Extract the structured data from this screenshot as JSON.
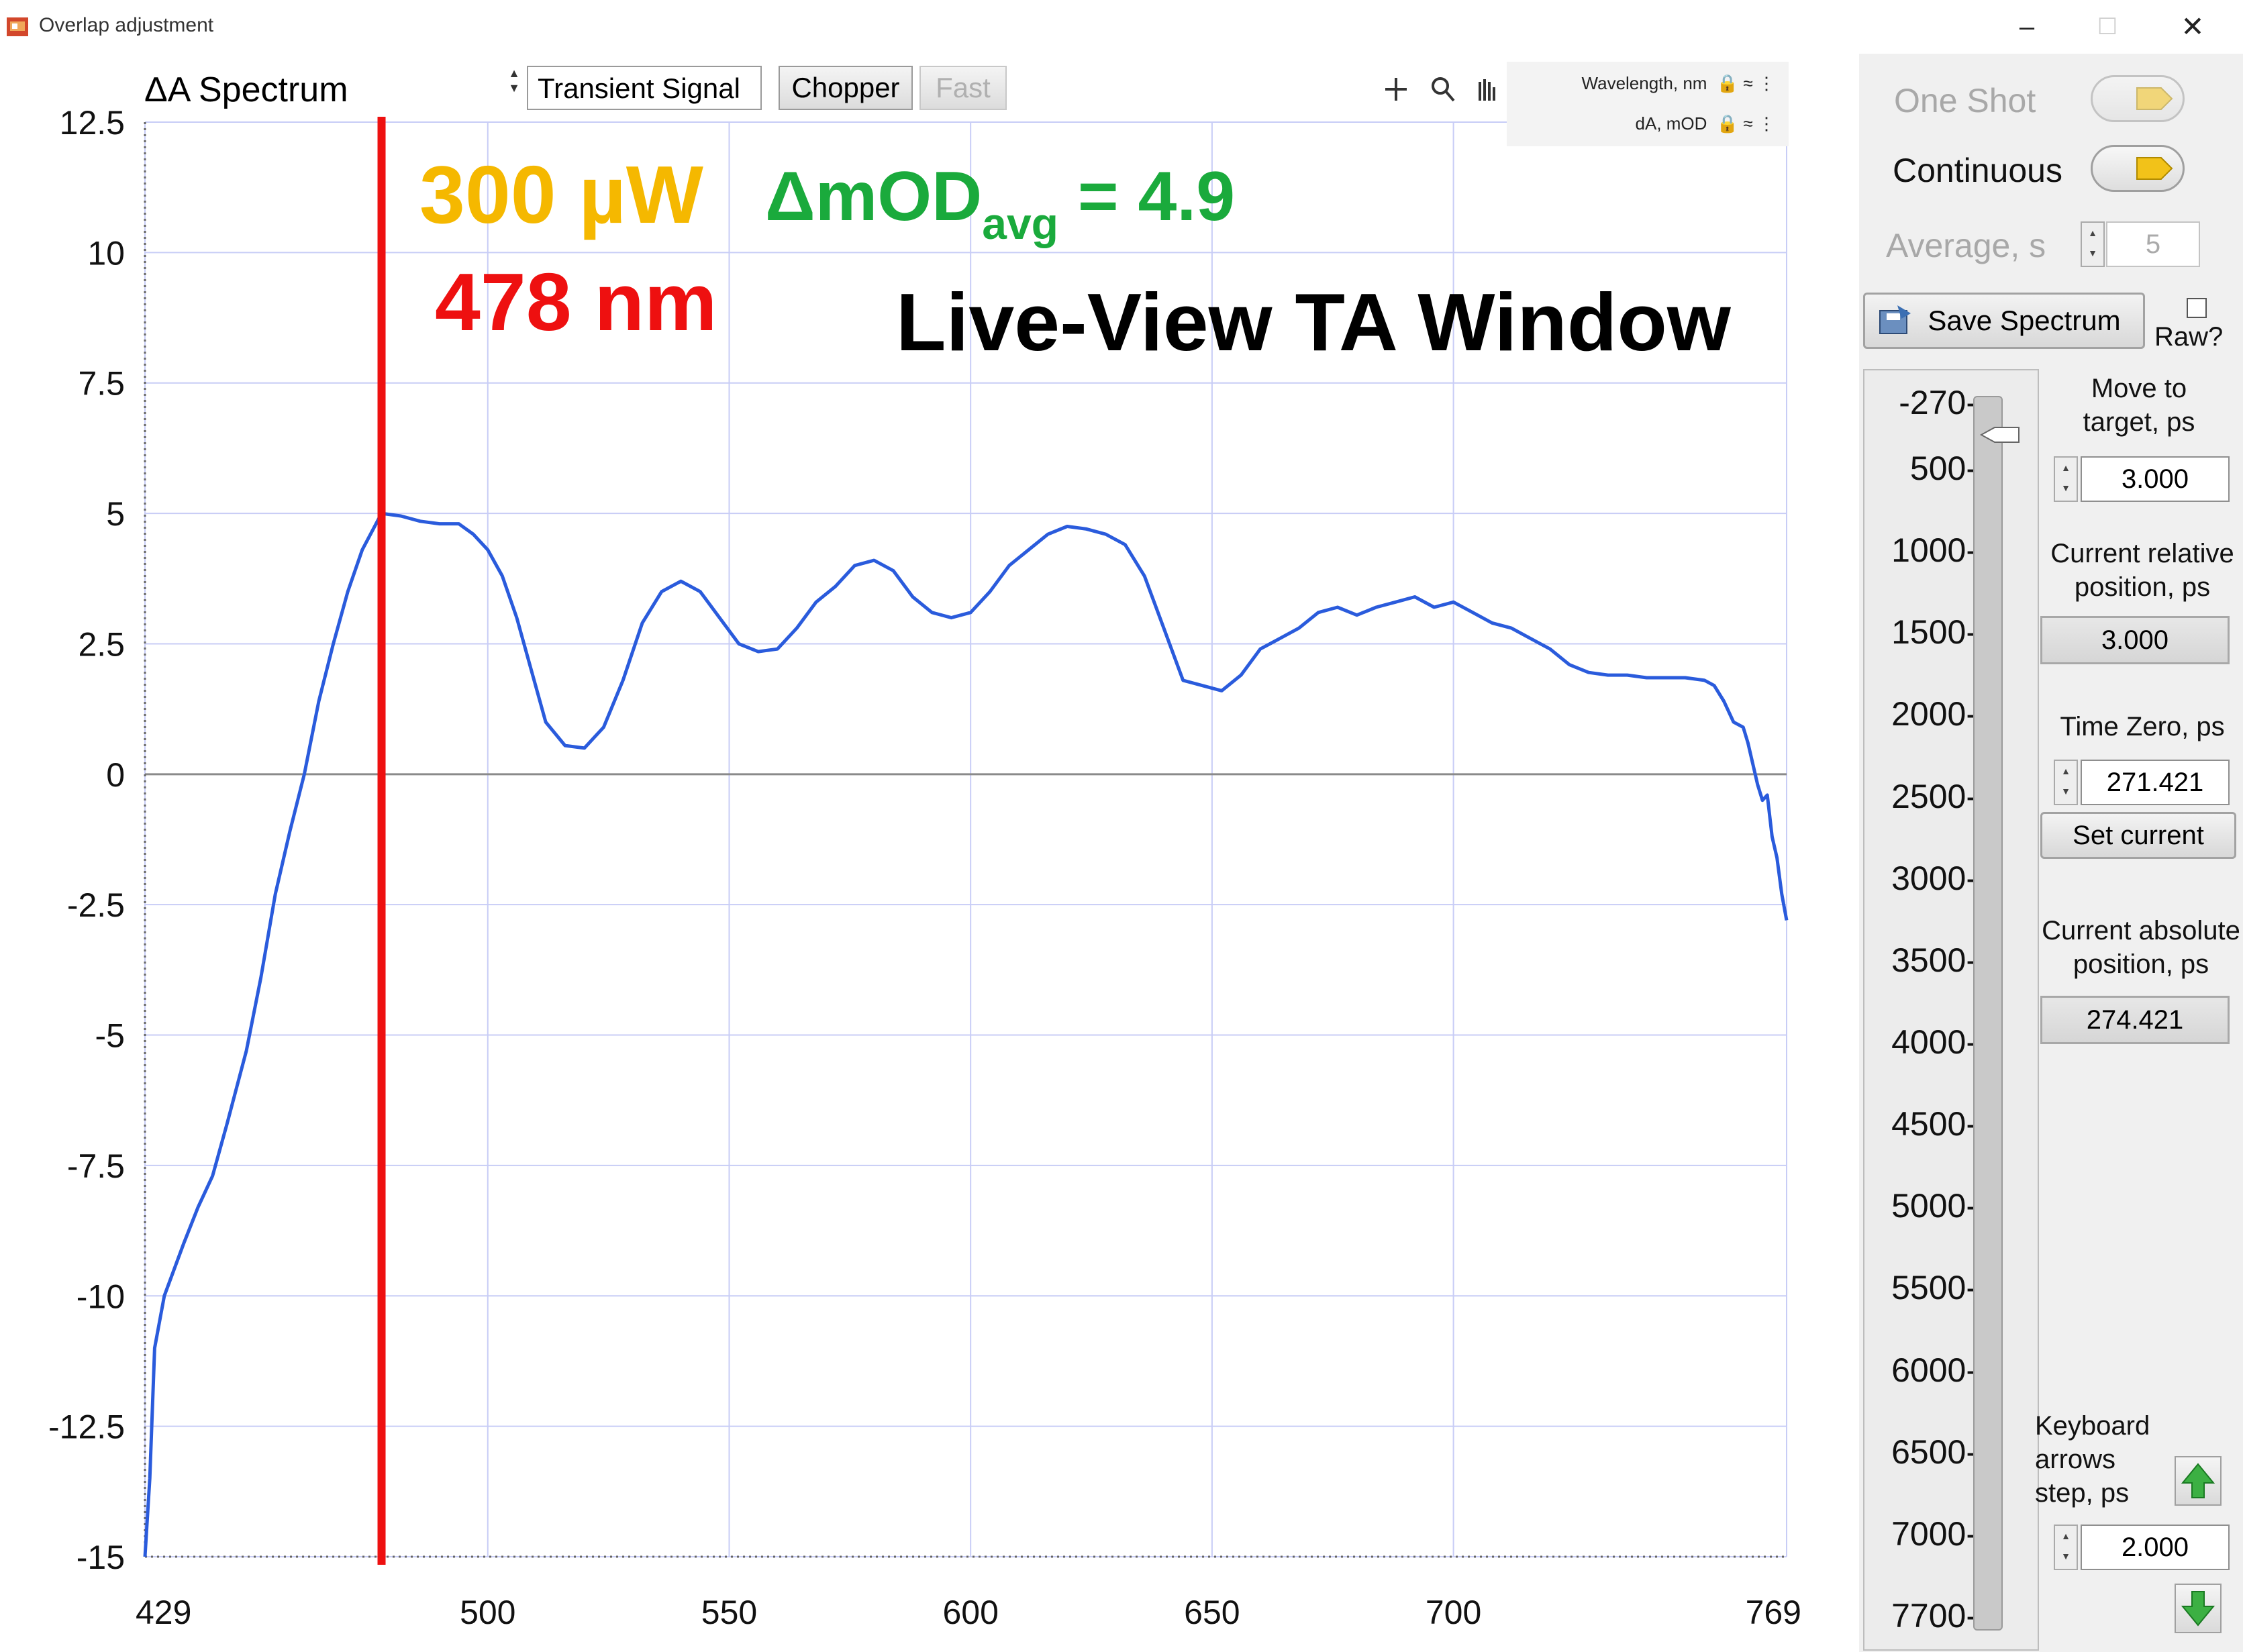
{
  "window": {
    "title": "Overlap adjustment",
    "controls": {
      "minimize": "–",
      "maximize": "☐",
      "close": "✕"
    }
  },
  "plot": {
    "header_label": "ΔA Spectrum",
    "signal_select": "Transient Signal",
    "chopper_button": "Chopper",
    "fast_button": "Fast",
    "cursor": {
      "row1_label": "Wavelength, nm",
      "row2_label": "dA, mOD"
    }
  },
  "annotations": {
    "power": "300 µW",
    "wavelength": "478 nm",
    "mod_prefix": "ΔmOD",
    "mod_sub": "avg",
    "mod_value": " = 4.9",
    "live_view": "Live-View TA Window"
  },
  "controls": {
    "one_shot": "One Shot",
    "continuous": "Continuous",
    "average_label": "Average, s",
    "average_value": "5",
    "save_spectrum": "Save Spectrum",
    "raw_label": "Raw?",
    "move_to_target_label": "Move to\ntarget, ps",
    "move_to_target_value": "3.000",
    "current_relative_label": "Current relative\nposition, ps",
    "current_relative_value": "3.000",
    "time_zero_label": "Time Zero, ps",
    "time_zero_value": "271.421",
    "set_current": "Set current",
    "current_absolute_label": "Current absolute\nposition, ps",
    "current_absolute_value": "274.421",
    "keyboard_label": "Keyboard\narrows\nstep, ps",
    "keyboard_step_value": "2.000",
    "delay_scale": [
      "-270",
      "500",
      "1000",
      "1500",
      "2000",
      "2500",
      "3000",
      "3500",
      "4000",
      "4500",
      "5000",
      "5500",
      "6000",
      "6500",
      "7000",
      "7700"
    ]
  },
  "colors": {
    "trace": "#2a5bdc",
    "marker": "#ee1010",
    "grid": "#c8cdf6",
    "power_text": "#f5b800",
    "mod_text": "#1aaa3c",
    "toggle_knob": "#f2c219"
  },
  "chart_data": {
    "type": "line",
    "title": "ΔA Spectrum",
    "xlabel": "",
    "ylabel": "",
    "xlim": [
      429,
      769
    ],
    "ylim": [
      -15,
      12.5
    ],
    "x_ticks": [
      "429",
      "500",
      "550",
      "600",
      "650",
      "700",
      "769"
    ],
    "y_ticks": [
      "12.5",
      "10",
      "7.5",
      "5",
      "2.5",
      "0",
      "-2.5",
      "-5",
      "-7.5",
      "-10",
      "-12.5",
      "-15"
    ],
    "grid": true,
    "marker_line": {
      "x": 478,
      "label": "478 nm"
    },
    "series": [
      {
        "x": [
          429,
          430,
          431,
          433,
          435,
          437,
          440,
          443,
          446,
          450,
          453,
          456,
          459,
          462,
          465,
          468,
          471,
          474,
          478,
          482,
          486,
          490,
          494,
          497,
          500,
          503,
          506,
          509,
          512,
          516,
          520,
          524,
          528,
          532,
          536,
          540,
          544,
          548,
          552,
          556,
          560,
          564,
          568,
          572,
          576,
          580,
          584,
          588,
          592,
          596,
          600,
          604,
          608,
          612,
          616,
          620,
          624,
          628,
          632,
          636,
          640,
          644,
          648,
          652,
          656,
          660,
          664,
          668,
          672,
          676,
          680,
          684,
          688,
          692,
          696,
          700,
          704,
          708,
          712,
          716,
          720,
          724,
          728,
          732,
          736,
          740,
          744,
          748,
          752,
          754,
          756,
          758,
          760,
          761,
          762,
          763,
          764,
          765,
          766,
          767,
          768,
          769
        ],
        "y": [
          -15,
          -13.5,
          -11,
          -10,
          -9.5,
          -9,
          -8.3,
          -7.7,
          -6.7,
          -5.3,
          -3.9,
          -2.3,
          -1.1,
          0,
          1.4,
          2.5,
          3.5,
          4.3,
          5.0,
          4.95,
          4.85,
          4.8,
          4.8,
          4.6,
          4.3,
          3.8,
          3.0,
          2.0,
          1.0,
          0.55,
          0.5,
          0.9,
          1.8,
          2.9,
          3.5,
          3.7,
          3.5,
          3.0,
          2.5,
          2.35,
          2.4,
          2.8,
          3.3,
          3.6,
          4.0,
          4.1,
          3.9,
          3.4,
          3.1,
          3.0,
          3.1,
          3.5,
          4.0,
          4.3,
          4.6,
          4.75,
          4.7,
          4.6,
          4.4,
          3.8,
          2.8,
          1.8,
          1.7,
          1.6,
          1.9,
          2.4,
          2.6,
          2.8,
          3.1,
          3.2,
          3.05,
          3.2,
          3.3,
          3.4,
          3.2,
          3.3,
          3.1,
          2.9,
          2.8,
          2.6,
          2.4,
          2.1,
          1.95,
          1.9,
          1.9,
          1.85,
          1.85,
          1.85,
          1.8,
          1.7,
          1.4,
          1.0,
          0.9,
          0.6,
          0.2,
          -0.2,
          -0.5,
          -0.4,
          -1.2,
          -1.6,
          -2.3,
          -2.8
        ]
      }
    ]
  }
}
